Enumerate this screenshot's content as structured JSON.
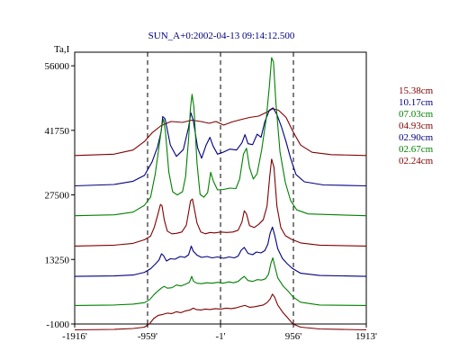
{
  "chart_data": {
    "type": "line",
    "title": "SUN_A+0:2002-04-13 09:14:12.500",
    "ylabel": "Ta,I",
    "xlabel": "",
    "x_ticks": [
      "-1916'",
      "-959'",
      "-1'",
      "956'",
      "1913'"
    ],
    "x_tick_values": [
      -1916,
      -959,
      -1,
      956,
      1913
    ],
    "y_ticks": [
      "56000",
      "41750",
      "27500",
      "13250",
      "-1000"
    ],
    "y_tick_values": [
      56000,
      41750,
      27500,
      13250,
      -1000
    ],
    "xlim": [
      -1916,
      1913
    ],
    "ylim": [
      -1000,
      59000
    ],
    "vertical_dashed_lines": [
      -959,
      -1,
      956
    ],
    "grid": false,
    "legend_position": "right",
    "series": [
      {
        "name": "15.38cm",
        "color": "#800000",
        "base": 36200,
        "points": [
          [
            -1916,
            36200
          ],
          [
            -1400,
            36500
          ],
          [
            -1150,
            37400
          ],
          [
            -1000,
            39300
          ],
          [
            -900,
            41200
          ],
          [
            -780,
            42800
          ],
          [
            -650,
            43700
          ],
          [
            -500,
            43500
          ],
          [
            -380,
            44000
          ],
          [
            -260,
            43700
          ],
          [
            -150,
            43300
          ],
          [
            -60,
            43700
          ],
          [
            40,
            42900
          ],
          [
            150,
            43600
          ],
          [
            260,
            44100
          ],
          [
            380,
            44600
          ],
          [
            500,
            44900
          ],
          [
            600,
            45700
          ],
          [
            680,
            46500
          ],
          [
            760,
            46200
          ],
          [
            860,
            44600
          ],
          [
            950,
            41500
          ],
          [
            1050,
            38500
          ],
          [
            1200,
            36900
          ],
          [
            1450,
            36400
          ],
          [
            1913,
            36200
          ]
        ]
      },
      {
        "name": "10.17cm",
        "color": "#000080",
        "base": 29500,
        "points": [
          [
            -1916,
            29500
          ],
          [
            -1400,
            29800
          ],
          [
            -1150,
            30500
          ],
          [
            -1000,
            31800
          ],
          [
            -900,
            34800
          ],
          [
            -830,
            38000
          ],
          [
            -780,
            41500
          ],
          [
            -760,
            44800
          ],
          [
            -730,
            44300
          ],
          [
            -660,
            38500
          ],
          [
            -580,
            36000
          ],
          [
            -490,
            37500
          ],
          [
            -420,
            42500
          ],
          [
            -390,
            45600
          ],
          [
            -360,
            44000
          ],
          [
            -300,
            37800
          ],
          [
            -250,
            35600
          ],
          [
            -190,
            38500
          ],
          [
            -140,
            40200
          ],
          [
            -100,
            38300
          ],
          [
            -40,
            36500
          ],
          [
            30,
            36900
          ],
          [
            120,
            37600
          ],
          [
            210,
            37400
          ],
          [
            280,
            39000
          ],
          [
            320,
            40800
          ],
          [
            360,
            38800
          ],
          [
            420,
            38600
          ],
          [
            480,
            40900
          ],
          [
            530,
            40200
          ],
          [
            580,
            43600
          ],
          [
            640,
            46200
          ],
          [
            690,
            46700
          ],
          [
            740,
            45200
          ],
          [
            800,
            42500
          ],
          [
            860,
            39200
          ],
          [
            920,
            35500
          ],
          [
            990,
            32000
          ],
          [
            1100,
            30400
          ],
          [
            1350,
            29700
          ],
          [
            1913,
            29500
          ]
        ]
      },
      {
        "name": "07.03cm",
        "color": "#008000",
        "base": 22900,
        "points": [
          [
            -1916,
            22900
          ],
          [
            -1400,
            23100
          ],
          [
            -1150,
            23700
          ],
          [
            -1000,
            25200
          ],
          [
            -920,
            27000
          ],
          [
            -860,
            32000
          ],
          [
            -810,
            38000
          ],
          [
            -770,
            43000
          ],
          [
            -750,
            44200
          ],
          [
            -725,
            41500
          ],
          [
            -680,
            32500
          ],
          [
            -630,
            28200
          ],
          [
            -570,
            27500
          ],
          [
            -500,
            28200
          ],
          [
            -460,
            31500
          ],
          [
            -420,
            40000
          ],
          [
            -395,
            46800
          ],
          [
            -375,
            49700
          ],
          [
            -350,
            46800
          ],
          [
            -310,
            34500
          ],
          [
            -270,
            27600
          ],
          [
            -220,
            27000
          ],
          [
            -170,
            28000
          ],
          [
            -130,
            32500
          ],
          [
            -95,
            30500
          ],
          [
            -40,
            28600
          ],
          [
            40,
            28700
          ],
          [
            120,
            29000
          ],
          [
            200,
            28900
          ],
          [
            250,
            31000
          ],
          [
            300,
            36500
          ],
          [
            340,
            37800
          ],
          [
            380,
            33500
          ],
          [
            430,
            31000
          ],
          [
            480,
            32200
          ],
          [
            540,
            37500
          ],
          [
            600,
            44500
          ],
          [
            640,
            51500
          ],
          [
            670,
            57800
          ],
          [
            695,
            56800
          ],
          [
            725,
            48000
          ],
          [
            780,
            37000
          ],
          [
            850,
            30200
          ],
          [
            920,
            26200
          ],
          [
            1000,
            24200
          ],
          [
            1150,
            23300
          ],
          [
            1913,
            22900
          ]
        ]
      },
      {
        "name": "04.93cm",
        "color": "#800000",
        "base": 16200,
        "points": [
          [
            -1916,
            16200
          ],
          [
            -1400,
            16400
          ],
          [
            -1150,
            16800
          ],
          [
            -1000,
            17600
          ],
          [
            -920,
            18400
          ],
          [
            -870,
            20400
          ],
          [
            -820,
            23400
          ],
          [
            -790,
            25400
          ],
          [
            -770,
            25100
          ],
          [
            -740,
            22000
          ],
          [
            -700,
            19500
          ],
          [
            -640,
            18900
          ],
          [
            -580,
            19000
          ],
          [
            -510,
            19300
          ],
          [
            -450,
            20800
          ],
          [
            -420,
            23700
          ],
          [
            -395,
            26200
          ],
          [
            -370,
            26600
          ],
          [
            -345,
            24500
          ],
          [
            -310,
            21300
          ],
          [
            -260,
            19300
          ],
          [
            -200,
            18900
          ],
          [
            -140,
            19200
          ],
          [
            -80,
            19100
          ],
          [
            0,
            19300
          ],
          [
            80,
            19200
          ],
          [
            160,
            19300
          ],
          [
            230,
            19700
          ],
          [
            280,
            21500
          ],
          [
            310,
            24000
          ],
          [
            340,
            23300
          ],
          [
            380,
            20700
          ],
          [
            440,
            20300
          ],
          [
            500,
            21000
          ],
          [
            560,
            22000
          ],
          [
            610,
            25000
          ],
          [
            645,
            31600
          ],
          [
            670,
            35400
          ],
          [
            700,
            33600
          ],
          [
            740,
            25000
          ],
          [
            790,
            20300
          ],
          [
            850,
            18500
          ],
          [
            930,
            17700
          ],
          [
            1050,
            16900
          ],
          [
            1300,
            16400
          ],
          [
            1913,
            16200
          ]
        ]
      },
      {
        "name": "02.90cm",
        "color": "#000080",
        "base": 9500,
        "points": [
          [
            -1916,
            9500
          ],
          [
            -1400,
            9600
          ],
          [
            -1150,
            9800
          ],
          [
            -1000,
            10400
          ],
          [
            -920,
            11200
          ],
          [
            -860,
            12200
          ],
          [
            -810,
            13100
          ],
          [
            -775,
            14500
          ],
          [
            -750,
            14100
          ],
          [
            -710,
            12900
          ],
          [
            -660,
            13400
          ],
          [
            -600,
            13300
          ],
          [
            -530,
            13900
          ],
          [
            -470,
            13700
          ],
          [
            -420,
            14300
          ],
          [
            -385,
            16200
          ],
          [
            -360,
            15100
          ],
          [
            -310,
            14200
          ],
          [
            -250,
            13700
          ],
          [
            -180,
            13900
          ],
          [
            -110,
            13600
          ],
          [
            -40,
            13800
          ],
          [
            40,
            13500
          ],
          [
            110,
            13800
          ],
          [
            180,
            13600
          ],
          [
            230,
            14000
          ],
          [
            270,
            15300
          ],
          [
            310,
            15900
          ],
          [
            360,
            14600
          ],
          [
            420,
            14300
          ],
          [
            470,
            14900
          ],
          [
            530,
            14700
          ],
          [
            580,
            15200
          ],
          [
            620,
            16600
          ],
          [
            650,
            19000
          ],
          [
            680,
            20400
          ],
          [
            710,
            18600
          ],
          [
            750,
            15600
          ],
          [
            810,
            13500
          ],
          [
            870,
            12400
          ],
          [
            940,
            11300
          ],
          [
            1050,
            10200
          ],
          [
            1300,
            9700
          ],
          [
            1913,
            9500
          ]
        ]
      },
      {
        "name": "02.67cm",
        "color": "#008000",
        "base": 3100,
        "points": [
          [
            -1916,
            3100
          ],
          [
            -1400,
            3200
          ],
          [
            -1150,
            3400
          ],
          [
            -1000,
            3700
          ],
          [
            -930,
            4400
          ],
          [
            -880,
            5400
          ],
          [
            -830,
            6200
          ],
          [
            -780,
            6900
          ],
          [
            -740,
            7300
          ],
          [
            -700,
            6900
          ],
          [
            -640,
            7000
          ],
          [
            -580,
            7600
          ],
          [
            -520,
            7400
          ],
          [
            -460,
            7800
          ],
          [
            -410,
            8200
          ],
          [
            -380,
            9500
          ],
          [
            -355,
            8400
          ],
          [
            -310,
            8000
          ],
          [
            -250,
            7900
          ],
          [
            -180,
            8100
          ],
          [
            -110,
            8000
          ],
          [
            -40,
            8200
          ],
          [
            30,
            8000
          ],
          [
            110,
            8300
          ],
          [
            170,
            8100
          ],
          [
            230,
            8400
          ],
          [
            270,
            9000
          ],
          [
            310,
            9500
          ],
          [
            360,
            8600
          ],
          [
            420,
            8400
          ],
          [
            480,
            8800
          ],
          [
            540,
            8700
          ],
          [
            590,
            9000
          ],
          [
            630,
            10000
          ],
          [
            660,
            12400
          ],
          [
            685,
            13600
          ],
          [
            710,
            11900
          ],
          [
            750,
            9200
          ],
          [
            820,
            7400
          ],
          [
            890,
            6200
          ],
          [
            950,
            5000
          ],
          [
            1050,
            3800
          ],
          [
            1300,
            3200
          ],
          [
            1913,
            3100
          ]
        ]
      },
      {
        "name": "02.24cm",
        "color": "#800000",
        "base": -2300,
        "points": [
          [
            -1916,
            -2300
          ],
          [
            -1400,
            -2200
          ],
          [
            -1150,
            -2000
          ],
          [
            -1000,
            -1700
          ],
          [
            -930,
            -900
          ],
          [
            -880,
            200
          ],
          [
            -820,
            900
          ],
          [
            -760,
            1100
          ],
          [
            -700,
            1400
          ],
          [
            -640,
            1300
          ],
          [
            -580,
            1700
          ],
          [
            -520,
            1500
          ],
          [
            -460,
            1900
          ],
          [
            -400,
            2100
          ],
          [
            -360,
            2500
          ],
          [
            -320,
            2200
          ],
          [
            -260,
            2100
          ],
          [
            -200,
            2300
          ],
          [
            -140,
            2200
          ],
          [
            -70,
            2400
          ],
          [
            0,
            2300
          ],
          [
            70,
            2500
          ],
          [
            140,
            2400
          ],
          [
            210,
            2600
          ],
          [
            270,
            2900
          ],
          [
            320,
            3100
          ],
          [
            380,
            2700
          ],
          [
            440,
            2800
          ],
          [
            500,
            3000
          ],
          [
            560,
            3200
          ],
          [
            610,
            3700
          ],
          [
            650,
            4500
          ],
          [
            680,
            5600
          ],
          [
            710,
            4900
          ],
          [
            750,
            3200
          ],
          [
            820,
            1500
          ],
          [
            890,
            200
          ],
          [
            950,
            -1000
          ],
          [
            1050,
            -1700
          ],
          [
            1300,
            -2100
          ],
          [
            1913,
            -2300
          ]
        ]
      }
    ]
  }
}
